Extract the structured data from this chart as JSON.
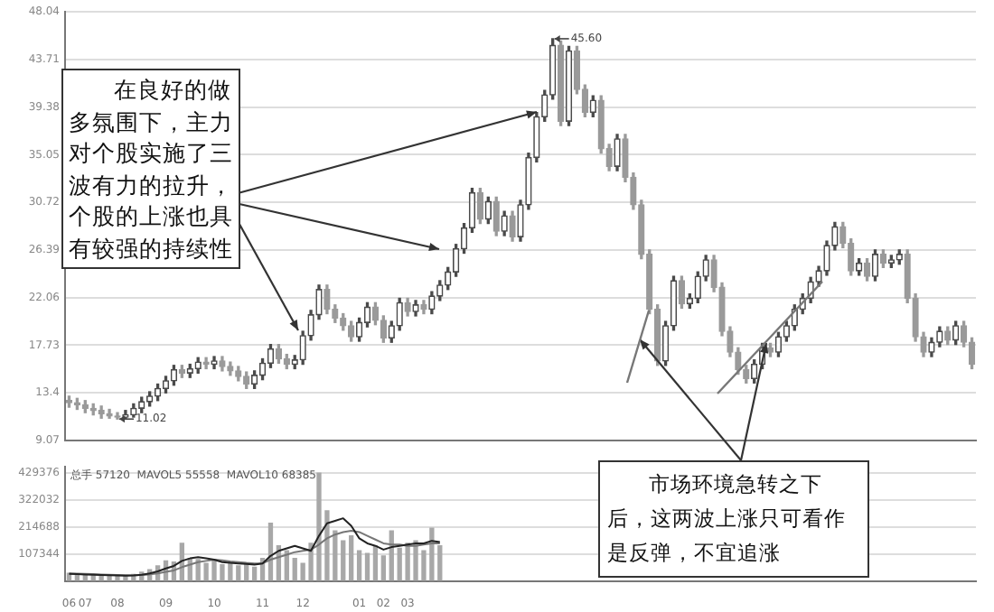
{
  "chart_data": [
    {
      "type": "candlestick",
      "tick_labels": "y",
      "grid": "y",
      "legend": false,
      "categories": [
        null,
        null,
        null,
        null,
        null,
        null,
        null,
        null,
        null,
        null,
        null,
        null,
        null,
        null,
        null,
        null,
        null,
        null,
        null,
        null,
        null,
        null,
        null,
        null,
        null,
        null,
        null,
        null,
        null,
        null,
        null,
        null,
        null,
        null,
        null,
        null,
        null,
        null,
        null,
        null,
        null,
        null,
        null,
        null,
        null,
        null,
        null,
        null,
        null,
        null,
        null,
        null,
        null,
        null,
        null,
        null,
        null,
        null,
        null,
        null,
        null,
        null,
        null,
        null,
        null,
        null,
        null,
        null,
        null,
        null,
        null,
        null,
        null,
        null,
        null,
        null,
        null,
        null,
        null,
        null,
        null,
        null,
        null,
        null,
        null,
        null,
        null,
        null,
        null,
        null,
        null,
        null,
        null,
        null,
        null,
        null,
        null,
        null,
        null,
        null,
        null,
        null,
        null,
        null,
        null,
        null,
        null,
        null,
        null,
        null,
        null,
        null,
        null
      ],
      "colors": [
        "#9a9a9a",
        "#9a9a9a",
        "#9a9a9a",
        "#9a9a9a",
        "#9a9a9a",
        "#9a9a9a",
        "#9a9a9a",
        "#4a4a4a",
        "#4a4a4a",
        "#4a4a4a",
        "#4a4a4a",
        "#4a4a4a",
        "#4a4a4a",
        "#4a4a4a",
        "#9a9a9a",
        "#4a4a4a",
        "#4a4a4a",
        "#9a9a9a",
        "#4a4a4a",
        "#9a9a9a",
        "#9a9a9a",
        "#9a9a9a",
        "#9a9a9a",
        "#4a4a4a",
        "#4a4a4a",
        "#4a4a4a",
        "#9a9a9a",
        "#9a9a9a",
        "#4a4a4a",
        "#4a4a4a",
        "#4a4a4a",
        "#4a4a4a",
        "#9a9a9a",
        "#9a9a9a",
        "#9a9a9a",
        "#9a9a9a",
        "#4a4a4a",
        "#4a4a4a",
        "#9a9a9a",
        "#9a9a9a",
        "#4a4a4a",
        "#4a4a4a",
        "#9a9a9a",
        "#4a4a4a",
        "#9a9a9a",
        "#4a4a4a",
        "#4a4a4a",
        "#4a4a4a",
        "#4a4a4a",
        "#4a4a4a",
        "#4a4a4a",
        "#9a9a9a",
        "#4a4a4a",
        "#9a9a9a",
        "#4a4a4a",
        "#9a9a9a",
        "#4a4a4a",
        "#4a4a4a",
        "#4a4a4a",
        "#4a4a4a",
        "#4a4a4a",
        "#9a9a9a",
        "#4a4a4a",
        "#9a9a9a",
        "#9a9a9a",
        "#4a4a4a",
        "#9a9a9a",
        "#9a9a9a",
        "#4a4a4a",
        "#9a9a9a",
        "#9a9a9a",
        "#9a9a9a",
        "#9a9a9a",
        "#9a9a9a",
        "#4a4a4a",
        "#4a4a4a",
        "#9a9a9a",
        "#4a4a4a",
        "#4a4a4a",
        "#4a4a4a",
        "#9a9a9a",
        "#9a9a9a",
        "#9a9a9a",
        "#9a9a9a",
        "#9a9a9a",
        "#4a4a4a",
        "#4a4a4a",
        "#9a9a9a",
        "#4a4a4a",
        "#4a4a4a",
        "#4a4a4a",
        "#4a4a4a",
        "#4a4a4a",
        "#4a4a4a",
        "#4a4a4a",
        "#4a4a4a",
        "#9a9a9a",
        "#9a9a9a",
        "#4a4a4a",
        "#9a9a9a",
        "#4a4a4a",
        "#9a9a9a",
        "#4a4a4a",
        "#4a4a4a",
        "#9a9a9a",
        "#9a9a9a",
        "#9a9a9a",
        "#4a4a4a",
        "#4a4a4a",
        "#9a9a9a",
        "#4a4a4a",
        "#9a9a9a",
        "#9a9a9a"
      ],
      "ohlc": [
        [
          12.7,
          13.1,
          12.1,
          12.5
        ],
        [
          12.5,
          12.9,
          11.9,
          12.3
        ],
        [
          12.3,
          12.7,
          11.6,
          12.0
        ],
        [
          12.0,
          12.4,
          11.4,
          11.8
        ],
        [
          11.8,
          12.2,
          11.1,
          11.5
        ],
        [
          11.5,
          11.9,
          11.1,
          11.3
        ],
        [
          11.3,
          11.6,
          11.02,
          11.2
        ],
        [
          11.2,
          11.8,
          11.1,
          11.4
        ],
        [
          11.4,
          12.4,
          11.2,
          12.0
        ],
        [
          12.0,
          13.0,
          11.6,
          12.6
        ],
        [
          12.6,
          13.5,
          12.2,
          13.1
        ],
        [
          13.1,
          14.2,
          12.7,
          13.8
        ],
        [
          13.8,
          14.9,
          13.4,
          14.5
        ],
        [
          14.5,
          15.9,
          14.1,
          15.5
        ],
        [
          15.5,
          15.9,
          14.8,
          15.2
        ],
        [
          15.2,
          16.0,
          14.8,
          15.6
        ],
        [
          15.6,
          16.6,
          15.2,
          16.2
        ],
        [
          16.2,
          16.6,
          15.6,
          16.0
        ],
        [
          16.0,
          16.7,
          15.6,
          16.3
        ],
        [
          16.3,
          16.7,
          15.4,
          15.8
        ],
        [
          15.8,
          16.2,
          15.0,
          15.4
        ],
        [
          15.4,
          15.8,
          14.5,
          14.9
        ],
        [
          14.9,
          15.3,
          13.8,
          14.2
        ],
        [
          14.2,
          15.4,
          13.8,
          15.0
        ],
        [
          15.0,
          16.5,
          14.6,
          16.1
        ],
        [
          16.1,
          17.8,
          15.7,
          17.4
        ],
        [
          17.4,
          17.8,
          16.1,
          16.5
        ],
        [
          16.5,
          16.9,
          15.6,
          16.0
        ],
        [
          16.0,
          16.8,
          15.6,
          16.4
        ],
        [
          16.4,
          19.0,
          16.0,
          18.6
        ],
        [
          18.6,
          20.9,
          18.2,
          20.5
        ],
        [
          20.5,
          23.2,
          20.1,
          22.8
        ],
        [
          22.8,
          23.2,
          20.6,
          21.0
        ],
        [
          21.0,
          21.4,
          19.8,
          20.2
        ],
        [
          20.2,
          20.6,
          19.1,
          19.5
        ],
        [
          19.5,
          19.9,
          18.1,
          18.5
        ],
        [
          18.5,
          20.2,
          18.1,
          19.8
        ],
        [
          19.8,
          21.6,
          19.4,
          21.2
        ],
        [
          21.2,
          21.6,
          19.6,
          20.0
        ],
        [
          20.0,
          20.4,
          18.0,
          18.4
        ],
        [
          18.4,
          19.9,
          18.0,
          19.5
        ],
        [
          19.5,
          22.0,
          19.1,
          21.6
        ],
        [
          21.6,
          22.0,
          20.4,
          20.8
        ],
        [
          20.8,
          21.8,
          20.4,
          21.4
        ],
        [
          21.4,
          21.8,
          20.6,
          21.0
        ],
        [
          21.0,
          22.6,
          20.6,
          22.2
        ],
        [
          22.2,
          23.6,
          21.8,
          23.2
        ],
        [
          23.2,
          24.8,
          22.8,
          24.4
        ],
        [
          24.4,
          26.9,
          24.0,
          26.5
        ],
        [
          26.5,
          28.8,
          26.1,
          28.4
        ],
        [
          28.4,
          32.0,
          28.0,
          31.6
        ],
        [
          31.6,
          32.0,
          28.8,
          29.2
        ],
        [
          29.2,
          31.2,
          28.8,
          30.8
        ],
        [
          30.8,
          31.2,
          27.7,
          28.1
        ],
        [
          28.1,
          29.9,
          27.7,
          29.5
        ],
        [
          29.5,
          29.9,
          27.2,
          27.6
        ],
        [
          27.6,
          30.9,
          27.2,
          30.5
        ],
        [
          30.5,
          35.2,
          30.1,
          34.8
        ],
        [
          34.8,
          38.9,
          34.4,
          38.5
        ],
        [
          38.5,
          40.9,
          38.1,
          40.5
        ],
        [
          40.5,
          45.6,
          40.1,
          45.0
        ],
        [
          45.0,
          45.4,
          37.7,
          38.1
        ],
        [
          38.1,
          44.9,
          37.7,
          44.5
        ],
        [
          44.5,
          44.9,
          40.6,
          41.0
        ],
        [
          41.0,
          41.4,
          38.5,
          38.9
        ],
        [
          38.9,
          40.4,
          38.5,
          40.0
        ],
        [
          40.0,
          40.4,
          35.2,
          35.6
        ],
        [
          35.6,
          36.0,
          33.6,
          34.0
        ],
        [
          34.0,
          36.9,
          33.6,
          36.5
        ],
        [
          36.5,
          36.9,
          32.6,
          33.0
        ],
        [
          33.0,
          33.4,
          30.1,
          30.5
        ],
        [
          30.5,
          30.9,
          25.6,
          26.0
        ],
        [
          26.0,
          26.4,
          20.6,
          21.0
        ],
        [
          21.0,
          21.4,
          15.9,
          16.3
        ],
        [
          16.3,
          19.9,
          15.9,
          19.5
        ],
        [
          19.5,
          24.0,
          19.1,
          23.6
        ],
        [
          23.6,
          24.0,
          21.1,
          21.5
        ],
        [
          21.5,
          22.4,
          21.1,
          22.0
        ],
        [
          22.0,
          24.4,
          21.6,
          24.0
        ],
        [
          24.0,
          25.9,
          23.6,
          25.5
        ],
        [
          25.5,
          25.9,
          22.6,
          23.0
        ],
        [
          23.0,
          23.4,
          18.6,
          19.0
        ],
        [
          19.0,
          19.4,
          16.7,
          17.1
        ],
        [
          17.1,
          17.5,
          15.1,
          15.5
        ],
        [
          15.5,
          15.9,
          14.3,
          14.7
        ],
        [
          14.7,
          16.4,
          14.3,
          16.0
        ],
        [
          16.0,
          17.9,
          15.6,
          17.5
        ],
        [
          17.5,
          17.9,
          16.7,
          17.1
        ],
        [
          17.1,
          18.9,
          16.7,
          18.5
        ],
        [
          18.5,
          19.9,
          18.1,
          19.5
        ],
        [
          19.5,
          21.4,
          19.1,
          21.0
        ],
        [
          21.0,
          22.4,
          20.6,
          22.0
        ],
        [
          22.0,
          23.9,
          21.6,
          23.5
        ],
        [
          23.5,
          24.9,
          23.1,
          24.5
        ],
        [
          24.5,
          27.2,
          24.1,
          26.8
        ],
        [
          26.8,
          28.9,
          26.4,
          28.5
        ],
        [
          28.5,
          28.9,
          26.6,
          27.0
        ],
        [
          27.0,
          27.4,
          24.1,
          24.5
        ],
        [
          24.5,
          25.6,
          24.1,
          25.2
        ],
        [
          25.2,
          25.6,
          23.6,
          24.0
        ],
        [
          24.0,
          26.4,
          23.6,
          26.0
        ],
        [
          26.0,
          26.4,
          24.8,
          25.2
        ],
        [
          25.2,
          25.9,
          24.8,
          25.5
        ],
        [
          25.5,
          26.4,
          25.1,
          26.0
        ],
        [
          26.0,
          26.4,
          21.6,
          22.0
        ],
        [
          22.0,
          22.4,
          18.1,
          18.5
        ],
        [
          18.5,
          18.9,
          16.7,
          17.1
        ],
        [
          17.1,
          18.4,
          16.7,
          18.0
        ],
        [
          18.0,
          19.4,
          17.6,
          19.0
        ],
        [
          19.0,
          19.4,
          17.8,
          18.2
        ],
        [
          18.2,
          19.9,
          17.8,
          19.5
        ],
        [
          19.5,
          19.9,
          17.6,
          18.0
        ],
        [
          18.0,
          18.4,
          15.6,
          16.0
        ]
      ],
      "ylim": [
        9.07,
        48.04
      ],
      "yticks": [
        9.07,
        13.4,
        17.73,
        22.06,
        26.39,
        30.72,
        35.05,
        39.38,
        43.71,
        48.04
      ],
      "annotations": [
        "在良好的做多氛围下，主力对个股实施了三波有力的拉升，个股的上涨也具有较强的持续性",
        "市场环境急转之下后，这两波上涨只可看作是反弹，不宜追涨",
        "45.60",
        "11.02"
      ]
    },
    {
      "type": "bar",
      "grid": "y",
      "legend": false,
      "categories": [
        "06",
        null,
        "07",
        null,
        null,
        null,
        "08",
        null,
        null,
        null,
        null,
        null,
        "09",
        null,
        null,
        null,
        null,
        null,
        "10",
        null,
        null,
        null,
        null,
        null,
        "11",
        null,
        null,
        null,
        null,
        "12",
        null,
        null,
        null,
        null,
        null,
        null,
        "01",
        null,
        null,
        "02",
        null,
        null,
        "03",
        null,
        null,
        null,
        null,
        null,
        null,
        null,
        null,
        null,
        null,
        null,
        null,
        null,
        null,
        null,
        null,
        null,
        null,
        null,
        null,
        null,
        null,
        null,
        null,
        null,
        null,
        null,
        null,
        null,
        null,
        null,
        null,
        null,
        null,
        null,
        null,
        null,
        null,
        null,
        null,
        null,
        null,
        null,
        null,
        null,
        null,
        null,
        null,
        null,
        null,
        null,
        null,
        null,
        null,
        null,
        null,
        null,
        null,
        null,
        null,
        null,
        null,
        null,
        null,
        null,
        null,
        null,
        null,
        null,
        null
      ],
      "series": [
        {
          "type": "bar",
          "color": "#a8a8a8",
          "values": [
            30000,
            25000,
            28000,
            22000,
            20000,
            24000,
            18000,
            20000,
            26000,
            35000,
            45000,
            60000,
            80000,
            75000,
            150000,
            90000,
            85000,
            70000,
            80000,
            65000,
            75000,
            60000,
            70000,
            55000,
            90000,
            230000,
            140000,
            120000,
            90000,
            70000,
            150000,
            430000,
            280000,
            200000,
            160000,
            180000,
            120000,
            110000,
            140000,
            100000,
            200000,
            130000,
            150000,
            160000,
            120000,
            210000,
            140000,
            null,
            null,
            null,
            null,
            null,
            null,
            null,
            null,
            null,
            null,
            null,
            null,
            null,
            null,
            null,
            null,
            null,
            null,
            null,
            null,
            null,
            null,
            null,
            null,
            null,
            null,
            null,
            null,
            null,
            null,
            null,
            null,
            null,
            null,
            null,
            null,
            null,
            null,
            null,
            null,
            null,
            null,
            null,
            null,
            null,
            null,
            null,
            null,
            null,
            null,
            null,
            null,
            null,
            null,
            null,
            null,
            null,
            null,
            null,
            null,
            null,
            null,
            null,
            null,
            null,
            null
          ]
        },
        {
          "type": "line",
          "color": "#222222",
          "values": [
            28000,
            27000,
            26000,
            25000,
            24000,
            23000,
            22000,
            21000,
            22000,
            25000,
            30000,
            38000,
            50000,
            60000,
            80000,
            90000,
            95000,
            90000,
            85000,
            75000,
            72000,
            70000,
            68000,
            65000,
            70000,
            100000,
            120000,
            130000,
            140000,
            130000,
            120000,
            180000,
            230000,
            240000,
            250000,
            220000,
            170000,
            150000,
            140000,
            125000,
            135000,
            140000,
            145000,
            150000,
            150000,
            160000,
            155000,
            null,
            null,
            null,
            null,
            null,
            null,
            null,
            null,
            null,
            null,
            null,
            null,
            null,
            null,
            null,
            null,
            null,
            null,
            null,
            null,
            null,
            null,
            null,
            null,
            null,
            null,
            null,
            null,
            null,
            null,
            null,
            null,
            null,
            null,
            null,
            null,
            null,
            null,
            null,
            null,
            null,
            null,
            null,
            null,
            null,
            null,
            null,
            null,
            null,
            null,
            null,
            null,
            null,
            null,
            null,
            null,
            null,
            null,
            null,
            null,
            null,
            null,
            null,
            null,
            null,
            null
          ]
        },
        {
          "type": "line",
          "color": "#777777",
          "values": [
            30000,
            29000,
            28000,
            27000,
            26000,
            25000,
            24000,
            23000,
            23000,
            24000,
            26000,
            30000,
            36000,
            42000,
            55000,
            65000,
            75000,
            80000,
            85000,
            82000,
            78000,
            75000,
            72000,
            70000,
            70000,
            85000,
            95000,
            105000,
            115000,
            120000,
            125000,
            145000,
            170000,
            185000,
            195000,
            200000,
            195000,
            180000,
            165000,
            150000,
            145000,
            145000,
            140000,
            140000,
            145000,
            150000,
            150000,
            null,
            null,
            null,
            null,
            null,
            null,
            null,
            null,
            null,
            null,
            null,
            null,
            null,
            null,
            null,
            null,
            null,
            null,
            null,
            null,
            null,
            null,
            null,
            null,
            null,
            null,
            null,
            null,
            null,
            null,
            null,
            null,
            null,
            null,
            null,
            null,
            null,
            null,
            null,
            null,
            null,
            null,
            null,
            null,
            null,
            null,
            null,
            null,
            null,
            null,
            null,
            null,
            null,
            null,
            null,
            null,
            null,
            null,
            null,
            null,
            null,
            null,
            null,
            null,
            null,
            null
          ]
        }
      ],
      "ylim": [
        0,
        455000
      ],
      "yticks": [
        107344,
        214688,
        322032,
        429376
      ],
      "annotations": [
        "总手 57120  MAVOL5 55558  MAVOL10 68385"
      ]
    }
  ]
}
